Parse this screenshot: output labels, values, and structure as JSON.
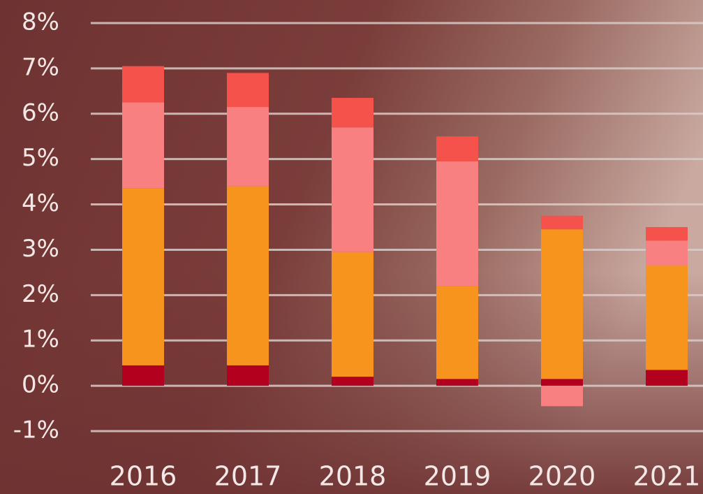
{
  "chart_data": {
    "type": "stacked-bar",
    "categories": [
      "2016",
      "2017",
      "2018",
      "2019",
      "2020",
      "2021"
    ],
    "series": [
      {
        "color": "#b3001f",
        "values": [
          0.45,
          0.45,
          0.2,
          0.15,
          0.15,
          0.35
        ]
      },
      {
        "color": "#f7941d",
        "values": [
          3.9,
          3.95,
          2.75,
          2.05,
          3.3,
          2.3
        ]
      },
      {
        "color": "#f88080",
        "values": [
          1.9,
          1.75,
          2.75,
          2.75,
          -0.45,
          0.55
        ]
      },
      {
        "color": "#f5524b",
        "values": [
          0.8,
          0.75,
          0.65,
          0.55,
          0.3,
          0.3
        ]
      }
    ],
    "ylim": [
      -1,
      8
    ],
    "yticks": [
      {
        "value": -1,
        "label": "-1%"
      },
      {
        "value": 0,
        "label": "0%"
      },
      {
        "value": 1,
        "label": "1%"
      },
      {
        "value": 2,
        "label": "2%"
      },
      {
        "value": 3,
        "label": "3%"
      },
      {
        "value": 4,
        "label": "4%"
      },
      {
        "value": 5,
        "label": "5%"
      },
      {
        "value": 6,
        "label": "6%"
      },
      {
        "value": 7,
        "label": "7%"
      },
      {
        "value": 8,
        "label": "8%"
      }
    ],
    "grid": true
  }
}
